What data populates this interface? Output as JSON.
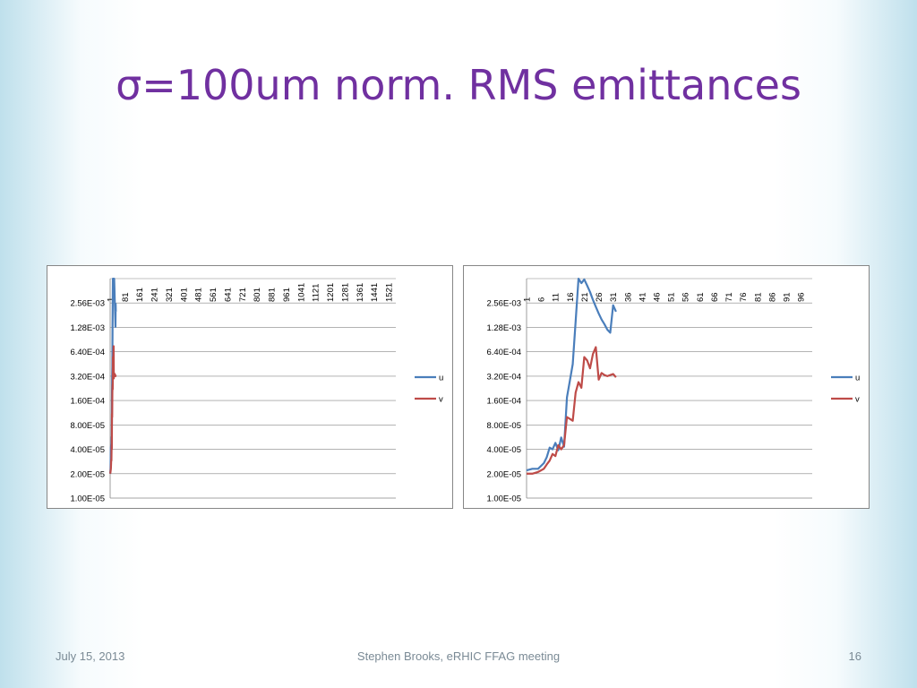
{
  "slide": {
    "title": "σ=100um norm. RMS emittances",
    "footer_date": "July 15, 2013",
    "footer_center": "Stephen Brooks, eRHIC FFAG meeting",
    "page_number": "16"
  },
  "colors": {
    "u": "#4a7ebb",
    "v": "#be4b48",
    "grid": "#868686",
    "title": "#7030a0"
  },
  "chart_data": [
    {
      "type": "line",
      "y_scale": "log2",
      "ylim": [
        1e-05,
        0.00512
      ],
      "y_ticks": [
        "1.00E-05",
        "2.00E-05",
        "4.00E-05",
        "8.00E-05",
        "1.60E-04",
        "3.20E-04",
        "6.40E-04",
        "1.28E-03",
        "2.56E-03"
      ],
      "x_range": [
        1,
        1560
      ],
      "x_tick_values": [
        1,
        81,
        161,
        241,
        321,
        401,
        481,
        561,
        641,
        721,
        801,
        881,
        961,
        1041,
        1121,
        1201,
        1281,
        1361,
        1441,
        1521
      ],
      "x_tick_labels": [
        "1",
        "81",
        "161",
        "241",
        "321",
        "401",
        "481",
        "561",
        "641",
        "721",
        "801",
        "881",
        "961",
        "1041",
        "1121",
        "1201",
        "1281",
        "1361",
        "1441",
        "1521"
      ],
      "legend": "right",
      "series": [
        {
          "name": "u",
          "x": [
            1,
            3,
            5,
            7,
            8,
            9,
            10,
            11,
            12,
            13,
            14,
            15,
            16,
            17,
            18,
            19,
            20,
            21,
            22,
            23,
            24,
            25,
            26,
            27,
            28,
            29,
            30,
            31,
            32
          ],
          "y": [
            2e-05,
            2.3e-05,
            4.2e-05,
            4.6e-05,
            3.9e-05,
            5.7e-05,
            4.2e-05,
            0.00017,
            0.00032,
            0.00042,
            0.0012,
            0.0025,
            0.0051,
            0.0051,
            0.0051,
            0.0051,
            0.0051,
            0.0051,
            0.0051,
            0.0051,
            0.0042,
            0.0035,
            0.0028,
            0.0023,
            0.0019,
            0.0016,
            0.0013,
            0.0025,
            0.002
          ]
        },
        {
          "name": "v",
          "x": [
            1,
            3,
            5,
            7,
            8,
            9,
            10,
            11,
            12,
            13,
            14,
            15,
            16,
            17,
            18,
            19,
            20,
            21,
            22,
            23,
            24,
            25,
            26,
            27,
            28,
            29,
            30,
            31,
            32
          ],
          "y": [
            2e-05,
            2.1e-05,
            2.3e-05,
            3e-05,
            2.9e-05,
            4.5e-05,
            4e-05,
            0.00011,
            0.0001,
            0.0002,
            0.00025,
            0.00022,
            0.00055,
            0.0005,
            0.0004,
            0.0006,
            0.00075,
            0.0003,
            0.00035,
            0.00034,
            0.00032,
            0.00033,
            0.00034,
            0.00032,
            0.00033,
            0.00033,
            0.00032,
            0.00033,
            0.00033
          ]
        }
      ]
    },
    {
      "type": "line",
      "y_scale": "log2",
      "ylim": [
        1e-05,
        0.00512
      ],
      "y_ticks": [
        "1.00E-05",
        "2.00E-05",
        "4.00E-05",
        "8.00E-05",
        "1.60E-04",
        "3.20E-04",
        "6.40E-04",
        "1.28E-03",
        "2.56E-03"
      ],
      "x_range": [
        1,
        100
      ],
      "x_tick_values": [
        1,
        6,
        11,
        16,
        21,
        26,
        31,
        36,
        41,
        46,
        51,
        56,
        61,
        66,
        71,
        76,
        81,
        86,
        91,
        96
      ],
      "x_tick_labels": [
        "1",
        "6",
        "11",
        "16",
        "21",
        "26",
        "31",
        "36",
        "41",
        "46",
        "51",
        "56",
        "61",
        "66",
        "71",
        "76",
        "81",
        "86",
        "91",
        "96"
      ],
      "legend": "right",
      "series": [
        {
          "name": "u",
          "x": [
            1,
            3,
            5,
            7,
            8,
            9,
            10,
            11,
            12,
            13,
            14,
            15,
            16,
            17,
            18,
            19,
            20,
            21,
            22,
            23,
            24,
            25,
            26,
            27,
            28,
            29,
            30,
            31,
            32
          ],
          "y": [
            2.2e-05,
            2.3e-05,
            2.3e-05,
            2.7e-05,
            3.2e-05,
            4.2e-05,
            4e-05,
            4.8e-05,
            3.9e-05,
            5.6e-05,
            4.3e-05,
            0.000175,
            0.00028,
            0.00045,
            0.0015,
            0.0051,
            0.0045,
            0.005,
            0.0042,
            0.0035,
            0.0028,
            0.0023,
            0.0019,
            0.0016,
            0.0014,
            0.0012,
            0.0011,
            0.0024,
            0.002
          ]
        },
        {
          "name": "v",
          "x": [
            1,
            3,
            5,
            7,
            8,
            9,
            10,
            11,
            12,
            13,
            14,
            15,
            16,
            17,
            18,
            19,
            20,
            21,
            22,
            23,
            24,
            25,
            26,
            27,
            28,
            29,
            30,
            31,
            32
          ],
          "y": [
            2e-05,
            2e-05,
            2.1e-05,
            2.3e-05,
            2.6e-05,
            2.9e-05,
            3.5e-05,
            3.3e-05,
            4.5e-05,
            4e-05,
            4.5e-05,
            0.0001,
            9.5e-05,
            9e-05,
            0.0002,
            0.00027,
            0.00023,
            0.00055,
            0.0005,
            0.0004,
            0.0006,
            0.00073,
            0.00029,
            0.00035,
            0.00033,
            0.00032,
            0.00033,
            0.00034,
            0.00031
          ]
        }
      ]
    }
  ]
}
